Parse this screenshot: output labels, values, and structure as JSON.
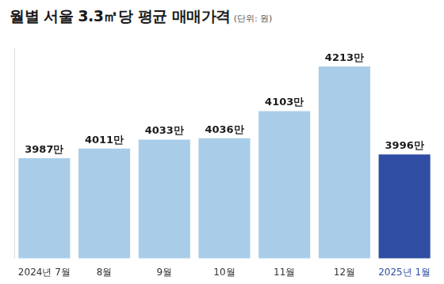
{
  "chart_data": {
    "type": "bar",
    "title": "월별 서울 3.3㎡당 평균 매매가격",
    "subtitle": "(단위: 원)",
    "categories": [
      "2024년 7월",
      "8월",
      "9월",
      "10월",
      "11월",
      "12월",
      "2025년 1월"
    ],
    "values": [
      3987,
      4011,
      4033,
      4036,
      4103,
      4213,
      3996
    ],
    "value_labels": [
      "3987만",
      "4011만",
      "4033만",
      "4036만",
      "4103만",
      "4213만",
      "3996만"
    ],
    "colors": [
      "#a9cde8",
      "#a9cde8",
      "#a9cde8",
      "#a9cde8",
      "#a9cde8",
      "#a9cde8",
      "#2f4ea3"
    ],
    "ylim": [
      3740,
      4260
    ],
    "data_labels": true,
    "tick_labels": "x",
    "grid": false
  }
}
